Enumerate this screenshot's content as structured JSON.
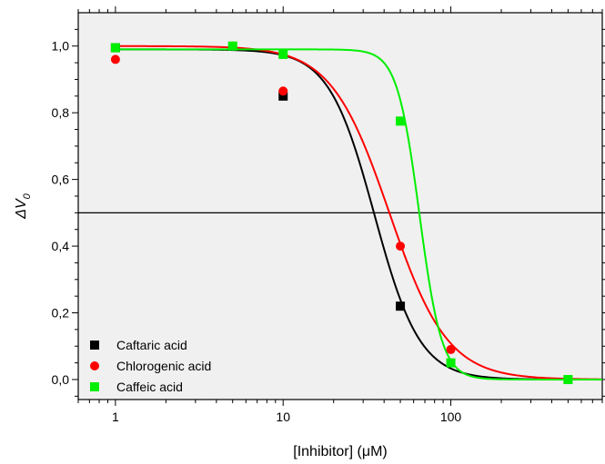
{
  "chart_data": {
    "type": "scatter",
    "xlabel": "[Inhibitor] (μM)",
    "ylabel_main": "ΔV",
    "ylabel_sub": "0",
    "x_scale": "log",
    "xlim": [
      0.6,
      800
    ],
    "ylim": [
      -0.06,
      1.1
    ],
    "x_ticks": [
      {
        "value": 1,
        "label": "1"
      },
      {
        "value": 10,
        "label": "10"
      },
      {
        "value": 100,
        "label": "100"
      }
    ],
    "y_ticks": [
      {
        "value": 0.0,
        "label": "0,0"
      },
      {
        "value": 0.2,
        "label": "0,2"
      },
      {
        "value": 0.4,
        "label": "0,4"
      },
      {
        "value": 0.6,
        "label": "0,6"
      },
      {
        "value": 0.8,
        "label": "0,8"
      },
      {
        "value": 1.0,
        "label": "1,0"
      }
    ],
    "reference_line_y": 0.5,
    "grid": false,
    "legend_position": "bottom-left",
    "series": [
      {
        "name": "Caftaric acid",
        "color": "#000000",
        "marker": "square",
        "points": [
          [
            1,
            0.995
          ],
          [
            10,
            0.85
          ],
          [
            50,
            0.22
          ]
        ],
        "fit": {
          "top": 0.99,
          "ic50": 35,
          "hill": 3.2
        }
      },
      {
        "name": "Chlorogenic acid",
        "color": "#ff0000",
        "marker": "circle",
        "points": [
          [
            1,
            0.96
          ],
          [
            10,
            0.865
          ],
          [
            50,
            0.4
          ],
          [
            100,
            0.09
          ]
        ],
        "fit": {
          "top": 1.0,
          "ic50": 43,
          "hill": 2.5
        }
      },
      {
        "name": "Caffeic acid",
        "color": "#00ee00",
        "marker": "square",
        "points": [
          [
            1,
            0.995
          ],
          [
            5,
            1.0
          ],
          [
            10,
            0.975
          ],
          [
            50,
            0.775
          ],
          [
            100,
            0.05
          ],
          [
            500,
            0.0
          ]
        ],
        "fit": {
          "top": 0.99,
          "ic50": 65,
          "hill": 6.5
        }
      }
    ],
    "extra_markers": [
      {
        "series_index": 1,
        "shape": "circle",
        "color": "#00ee00",
        "x": 5,
        "y": 1.0
      },
      {
        "series_index": 1,
        "shape": "circle",
        "color": "#00ee00",
        "x": 500,
        "y": 0.0
      }
    ]
  }
}
